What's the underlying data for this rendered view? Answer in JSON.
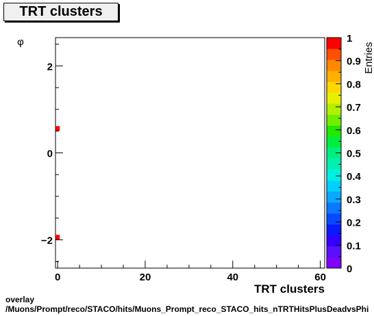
{
  "chart_data": {
    "type": "heatmap",
    "title": "TRT clusters",
    "xlabel": "TRT clusters",
    "ylabel": "φ",
    "zlabel": "Entries",
    "xlim": [
      -0.5,
      61
    ],
    "ylim": [
      -2.65,
      2.65
    ],
    "zlim": [
      0,
      1
    ],
    "x_ticks": [
      0,
      20,
      40,
      60
    ],
    "y_ticks": [
      -2,
      0,
      2
    ],
    "z_ticks": [
      0,
      0.1,
      0.2,
      0.3,
      0.4,
      0.5,
      0.6,
      0.7,
      0.8,
      0.9,
      1
    ],
    "x_tick_labels": [
      "0",
      "20",
      "40",
      "60"
    ],
    "y_tick_labels": [
      "−2",
      "0",
      "2"
    ],
    "z_tick_labels": [
      "0",
      "0.1",
      "0.2",
      "0.3",
      "0.4",
      "0.5",
      "0.6",
      "0.7",
      "0.8",
      "0.9",
      "1"
    ],
    "cells": [
      {
        "x": 0,
        "y": 0.56,
        "value": 1
      },
      {
        "x": 0,
        "y": -1.94,
        "value": 1
      }
    ],
    "palette": [
      "#8000ff",
      "#5a10ff",
      "#3300ff",
      "#0a1aff",
      "#0a48ff",
      "#0a78ff",
      "#0aa8ff",
      "#00d0ff",
      "#00f0e0",
      "#00f0b0",
      "#00ee80",
      "#00ee40",
      "#20e800",
      "#70ee00",
      "#b0f000",
      "#e8f000",
      "#ffd800",
      "#ffb000",
      "#ff8800",
      "#ff5000",
      "#ff0000"
    ]
  },
  "caption": {
    "line1": "overlay",
    "line2": "/Muons/Prompt/reco/STACO/hits/Muons_Prompt_reco_STACO_hits_nTRTHitsPlusDeadvsPhi"
  }
}
